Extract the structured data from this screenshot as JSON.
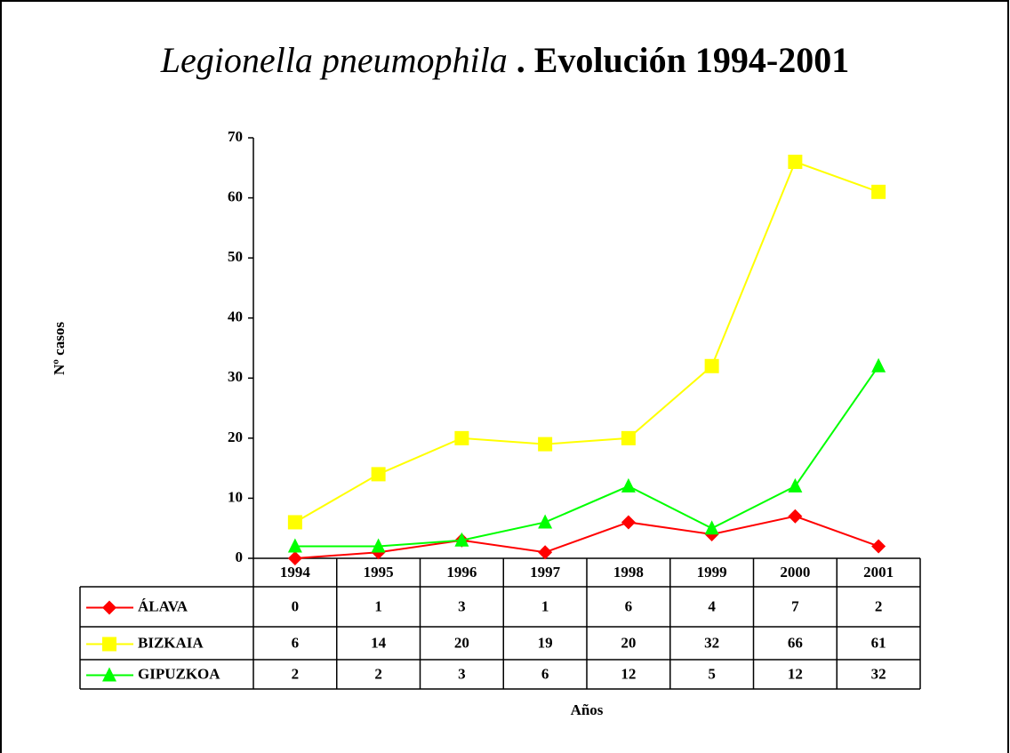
{
  "chart_data": {
    "type": "line",
    "title": {
      "italic": "Legionella pneumophila",
      "bold": " . Evolución 1994-2001"
    },
    "y_label": "Nº casos",
    "x_label": "Años",
    "categories": [
      "1994",
      "1995",
      "1996",
      "1997",
      "1998",
      "1999",
      "2000",
      "2001"
    ],
    "series": [
      {
        "name": "ÁLAVA",
        "color": "#ff0000",
        "marker": "diamond",
        "values": [
          0,
          1,
          3,
          1,
          6,
          4,
          7,
          2
        ]
      },
      {
        "name": "BIZKAIA",
        "color": "#ffff00",
        "marker": "square",
        "values": [
          6,
          14,
          20,
          19,
          20,
          32,
          66,
          61
        ]
      },
      {
        "name": "GIPUZKOA",
        "color": "#00ff00",
        "marker": "triangle",
        "values": [
          2,
          2,
          3,
          6,
          12,
          5,
          12,
          32
        ]
      }
    ],
    "ylim": [
      0,
      70
    ],
    "yticks": [
      0,
      10,
      20,
      30,
      40,
      50,
      60,
      70
    ],
    "data_table": true
  }
}
